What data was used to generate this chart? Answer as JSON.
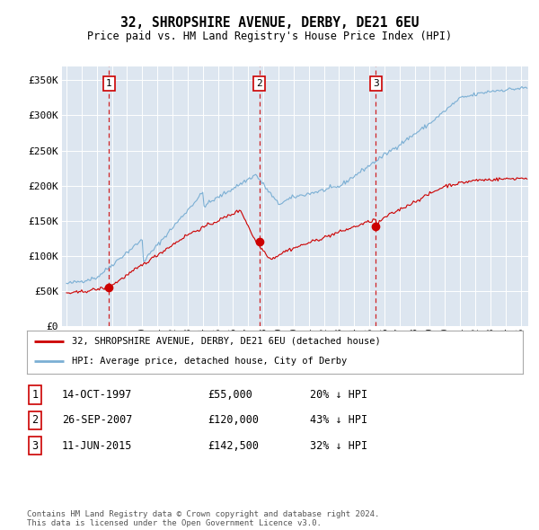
{
  "title": "32, SHROPSHIRE AVENUE, DERBY, DE21 6EU",
  "subtitle": "Price paid vs. HM Land Registry's House Price Index (HPI)",
  "footer": "Contains HM Land Registry data © Crown copyright and database right 2024.\nThis data is licensed under the Open Government Licence v3.0.",
  "legend_line1": "32, SHROPSHIRE AVENUE, DERBY, DE21 6EU (detached house)",
  "legend_line2": "HPI: Average price, detached house, City of Derby",
  "transactions": [
    {
      "num": 1,
      "date": "14-OCT-1997",
      "price": 55000,
      "pct": "20%",
      "dir": "↓",
      "x_year": 1997.79
    },
    {
      "num": 2,
      "date": "26-SEP-2007",
      "price": 120000,
      "pct": "43%",
      "dir": "↓",
      "x_year": 2007.73
    },
    {
      "num": 3,
      "date": "11-JUN-2015",
      "price": 142500,
      "pct": "32%",
      "dir": "↓",
      "x_year": 2015.44
    }
  ],
  "plot_bg_color": "#dde6f0",
  "red_line_color": "#cc0000",
  "blue_line_color": "#7bafd4",
  "dashed_line_color": "#cc0000",
  "ylim": [
    0,
    370000
  ],
  "xlim_start": 1994.7,
  "xlim_end": 2025.5,
  "yticks": [
    0,
    50000,
    100000,
    150000,
    200000,
    250000,
    300000,
    350000
  ],
  "ytick_labels": [
    "£0",
    "£50K",
    "£100K",
    "£150K",
    "£200K",
    "£250K",
    "£300K",
    "£350K"
  ]
}
